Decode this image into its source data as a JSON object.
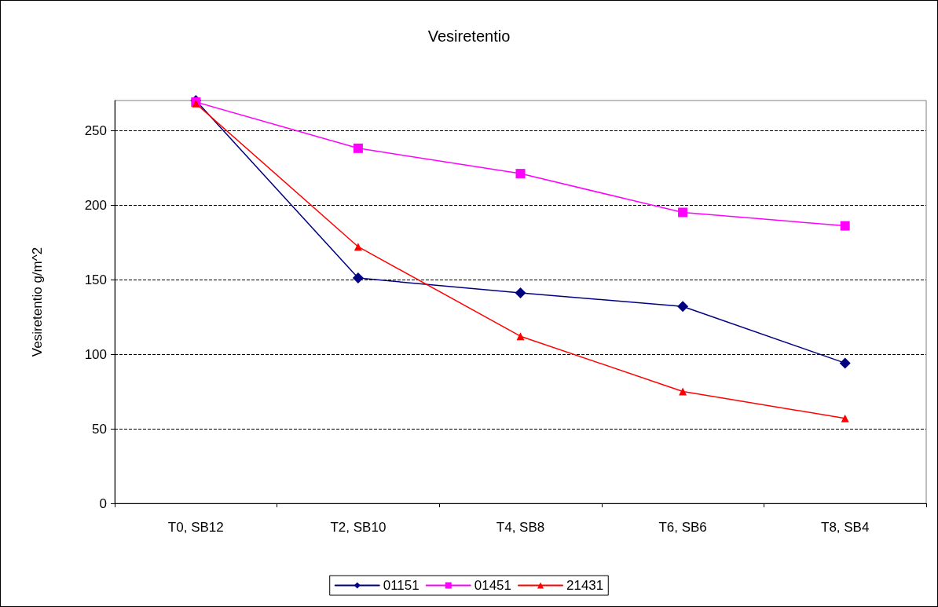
{
  "chart_data": {
    "type": "line",
    "title": "Vesiretentio",
    "ylabel": "Vesiretentio g/m^2",
    "categories": [
      "T0, SB12",
      "T2, SB10",
      "T4, SB8",
      "T6, SB6",
      "T8, SB4"
    ],
    "series": [
      {
        "name": "01151",
        "color": "#000080",
        "marker": "diamond",
        "values": [
          270,
          151,
          141,
          132,
          94
        ]
      },
      {
        "name": "01451",
        "color": "#ff00ff",
        "marker": "square",
        "values": [
          269,
          238,
          221,
          195,
          186
        ]
      },
      {
        "name": "21431",
        "color": "#ff0000",
        "marker": "triangle",
        "values": [
          268,
          172,
          112,
          75,
          57
        ]
      }
    ],
    "ylim": [
      0,
      270
    ],
    "yticks": [
      0,
      50,
      100,
      150,
      200,
      250
    ],
    "grid": "y",
    "legend": "bottom",
    "line_style": "solid"
  }
}
